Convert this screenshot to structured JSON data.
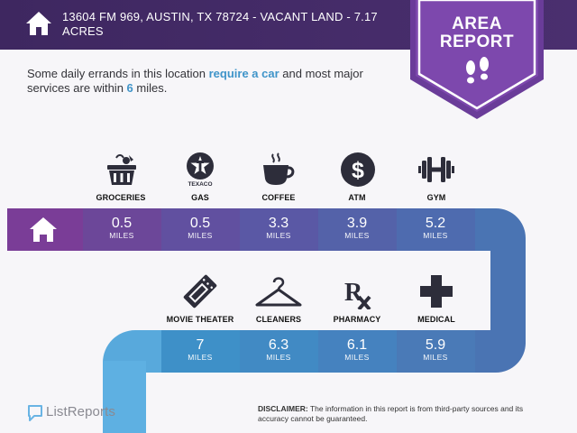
{
  "header": {
    "title": "13604 FM 969, AUSTIN, TX 78724 - VACANT LAND - 7.17 ACRES",
    "home_icon": "house-icon"
  },
  "badge": {
    "line1": "AREA",
    "line2": "REPORT",
    "icon": "footsteps-icon"
  },
  "intro": {
    "part1": "Some daily errands in this location ",
    "highlight1": "require a car",
    "part2": " and most major services are within ",
    "highlight2": "6",
    "part3": " miles."
  },
  "row1": [
    {
      "label": "GROCERIES",
      "value": "0.5",
      "unit": "MILES",
      "icon": "grocery-basket-icon"
    },
    {
      "label": "GAS",
      "value": "0.5",
      "unit": "MILES",
      "icon": "texaco-icon",
      "brand": "TEXACO"
    },
    {
      "label": "COFFEE",
      "value": "3.3",
      "unit": "MILES",
      "icon": "coffee-cup-icon"
    },
    {
      "label": "ATM",
      "value": "3.9",
      "unit": "MILES",
      "icon": "dollar-icon"
    },
    {
      "label": "GYM",
      "value": "5.2",
      "unit": "MILES",
      "icon": "dumbbell-icon"
    }
  ],
  "row2": [
    {
      "label": "MOVIE THEATER",
      "value": "7",
      "unit": "MILES",
      "icon": "ticket-icon"
    },
    {
      "label": "CLEANERS",
      "value": "6.3",
      "unit": "MILES",
      "icon": "hanger-icon"
    },
    {
      "label": "PHARMACY",
      "value": "6.1",
      "unit": "MILES",
      "icon": "rx-icon"
    },
    {
      "label": "MEDICAL",
      "value": "5.9",
      "unit": "MILES",
      "icon": "medical-cross-icon"
    }
  ],
  "footer": {
    "logo_text": "ListReports",
    "disclaimer_label": "DISCLAIMER:",
    "disclaimer_text": " The information in this report is from third-party sources and its accuracy cannot be guaranteed."
  },
  "colors": {
    "header": "#44295f",
    "badge": "#7a45a8",
    "track_row1": [
      "#7a3d97",
      "#6a4a9a",
      "#5d55a3",
      "#5660a8",
      "#4f6cae",
      "#4a78b4"
    ],
    "track_row2": [
      "#3f8ec7",
      "#3c8ac5",
      "#4186c4",
      "#4a7ebd",
      "#4a78b4"
    ],
    "highlight": "#3f94c9"
  }
}
